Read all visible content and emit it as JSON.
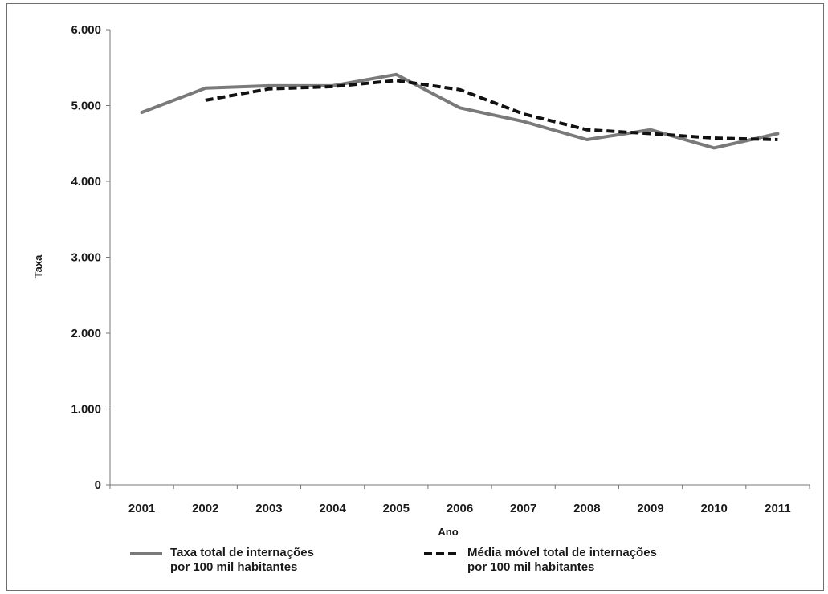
{
  "chart_data": {
    "type": "line",
    "xlabel": "Ano",
    "ylabel": "Taxa",
    "x": [
      "2001",
      "2002",
      "2003",
      "2004",
      "2005",
      "2006",
      "2007",
      "2008",
      "2009",
      "2010",
      "2011"
    ],
    "ylim": [
      0,
      6000
    ],
    "yticks": [
      0,
      1000,
      2000,
      3000,
      4000,
      5000,
      6000
    ],
    "ytick_labels": [
      "0",
      "1.000",
      "2.000",
      "3.000",
      "4.000",
      "5.000",
      "6.000"
    ],
    "grid": false,
    "legend_position": "bottom",
    "series": [
      {
        "name": "Taxa total de internações por 100 mil habitantes",
        "legend_lines": [
          "Taxa total de internações",
          "por 100 mil habitantes"
        ],
        "style": "solid",
        "color": "#7a7a7a",
        "values": [
          4910,
          5230,
          5260,
          5260,
          5410,
          4970,
          4790,
          4550,
          4680,
          4440,
          4630
        ]
      },
      {
        "name": "Média móvel total de internações por 100 mil habitantes",
        "legend_lines": [
          "Média móvel total de internações",
          "por 100 mil habitantes"
        ],
        "style": "dashed",
        "color": "#111111",
        "values": [
          null,
          5070,
          5220,
          5250,
          5330,
          5210,
          4890,
          4680,
          4630,
          4570,
          4550
        ]
      }
    ]
  }
}
